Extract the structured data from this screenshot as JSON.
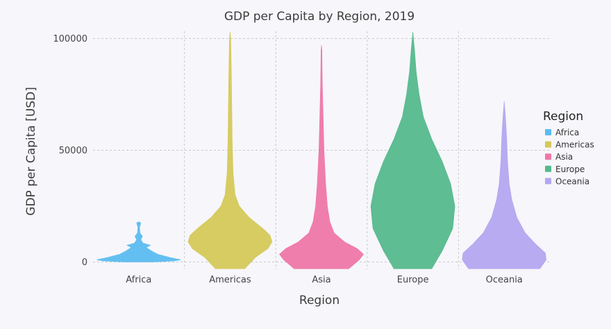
{
  "chart_data": {
    "type": "violin",
    "title": "GDP per Capita by Region, 2019",
    "xlabel": "Region",
    "ylabel": "GDP per Capita [USD]",
    "categories": [
      "Africa",
      "Americas",
      "Asia",
      "Europe",
      "Oceania"
    ],
    "ylim": [
      -3000,
      105000
    ],
    "yticks": [
      0,
      50000,
      100000
    ],
    "ytick_labels": [
      "0",
      "50000",
      "100000"
    ],
    "grid": true,
    "legend": {
      "title": "Region",
      "placement": "right",
      "entries": [
        "Africa",
        "Americas",
        "Asia",
        "Europe",
        "Oceania"
      ]
    },
    "series": [
      {
        "name": "Africa",
        "color": "#5bbcf0",
        "min": 0,
        "max": 18000,
        "density": [
          [
            0,
            0.35
          ],
          [
            500,
            0.85
          ],
          [
            1000,
            1.0
          ],
          [
            2000,
            0.75
          ],
          [
            3500,
            0.45
          ],
          [
            5000,
            0.3
          ],
          [
            6500,
            0.18
          ],
          [
            7500,
            0.28
          ],
          [
            8500,
            0.1
          ],
          [
            10000,
            0.05
          ],
          [
            11500,
            0.09
          ],
          [
            13000,
            0.03
          ],
          [
            15500,
            0.02
          ],
          [
            17500,
            0.05
          ],
          [
            18000,
            0.0
          ]
        ]
      },
      {
        "name": "Americas",
        "color": "#d4c95a",
        "min": -3000,
        "max": 103000,
        "density": [
          [
            -3000,
            0.35
          ],
          [
            2000,
            0.6
          ],
          [
            6000,
            0.9
          ],
          [
            9000,
            1.0
          ],
          [
            12000,
            0.95
          ],
          [
            15000,
            0.78
          ],
          [
            20000,
            0.45
          ],
          [
            25000,
            0.22
          ],
          [
            30000,
            0.12
          ],
          [
            40000,
            0.07
          ],
          [
            55000,
            0.05
          ],
          [
            70000,
            0.04
          ],
          [
            85000,
            0.03
          ],
          [
            100000,
            0.015
          ],
          [
            103000,
            0.0
          ]
        ]
      },
      {
        "name": "Asia",
        "color": "#ee77a8",
        "min": -3000,
        "max": 97000,
        "density": [
          [
            -3000,
            0.65
          ],
          [
            1000,
            0.9
          ],
          [
            3500,
            1.0
          ],
          [
            6000,
            0.85
          ],
          [
            9000,
            0.55
          ],
          [
            13000,
            0.3
          ],
          [
            18000,
            0.2
          ],
          [
            25000,
            0.14
          ],
          [
            35000,
            0.1
          ],
          [
            50000,
            0.06
          ],
          [
            65000,
            0.04
          ],
          [
            80000,
            0.02
          ],
          [
            95000,
            0.01
          ],
          [
            97000,
            0.0
          ]
        ]
      },
      {
        "name": "Europe",
        "color": "#55b98c",
        "min": -3000,
        "max": 103000,
        "density": [
          [
            -3000,
            0.45
          ],
          [
            5000,
            0.7
          ],
          [
            15000,
            0.95
          ],
          [
            25000,
            1.0
          ],
          [
            35000,
            0.9
          ],
          [
            45000,
            0.7
          ],
          [
            55000,
            0.45
          ],
          [
            65000,
            0.25
          ],
          [
            75000,
            0.15
          ],
          [
            85000,
            0.08
          ],
          [
            95000,
            0.04
          ],
          [
            103000,
            0.0
          ]
        ]
      },
      {
        "name": "Oceania",
        "color": "#b4a6f0",
        "min": -3000,
        "max": 72000,
        "density": [
          [
            -3000,
            0.85
          ],
          [
            1000,
            1.0
          ],
          [
            4000,
            0.98
          ],
          [
            8000,
            0.75
          ],
          [
            13000,
            0.5
          ],
          [
            20000,
            0.3
          ],
          [
            28000,
            0.18
          ],
          [
            35000,
            0.12
          ],
          [
            45000,
            0.08
          ],
          [
            55000,
            0.06
          ],
          [
            65000,
            0.03
          ],
          [
            72000,
            0.0
          ]
        ]
      }
    ]
  }
}
